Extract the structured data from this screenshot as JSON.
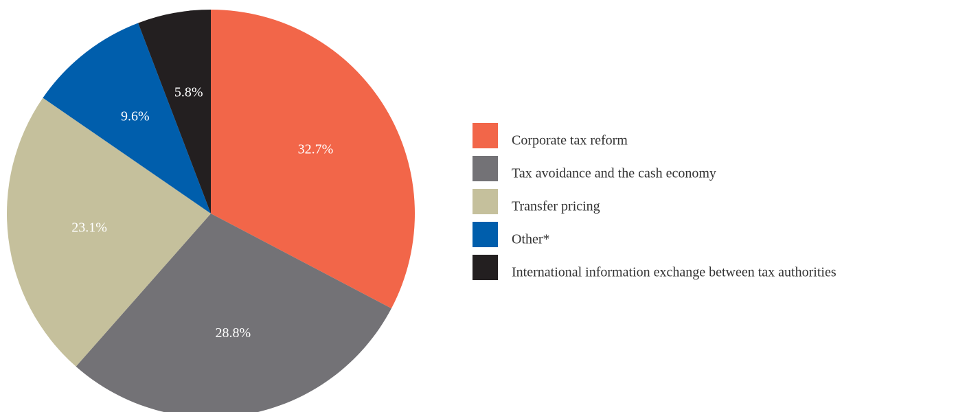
{
  "chart_data": {
    "type": "pie",
    "categories": [
      "Corporate tax reform",
      "Tax avoidance and the cash economy",
      "Transfer pricing",
      "Other*",
      "International information exchange between tax authorities"
    ],
    "values": [
      32.7,
      28.8,
      23.1,
      9.6,
      5.8
    ],
    "value_labels": [
      "32.7%",
      "28.8%",
      "23.1%",
      "9.6%",
      "5.8%"
    ],
    "colors": [
      "#f26649",
      "#737276",
      "#c5c09c",
      "#005eac",
      "#231f20"
    ],
    "legend": "right"
  }
}
